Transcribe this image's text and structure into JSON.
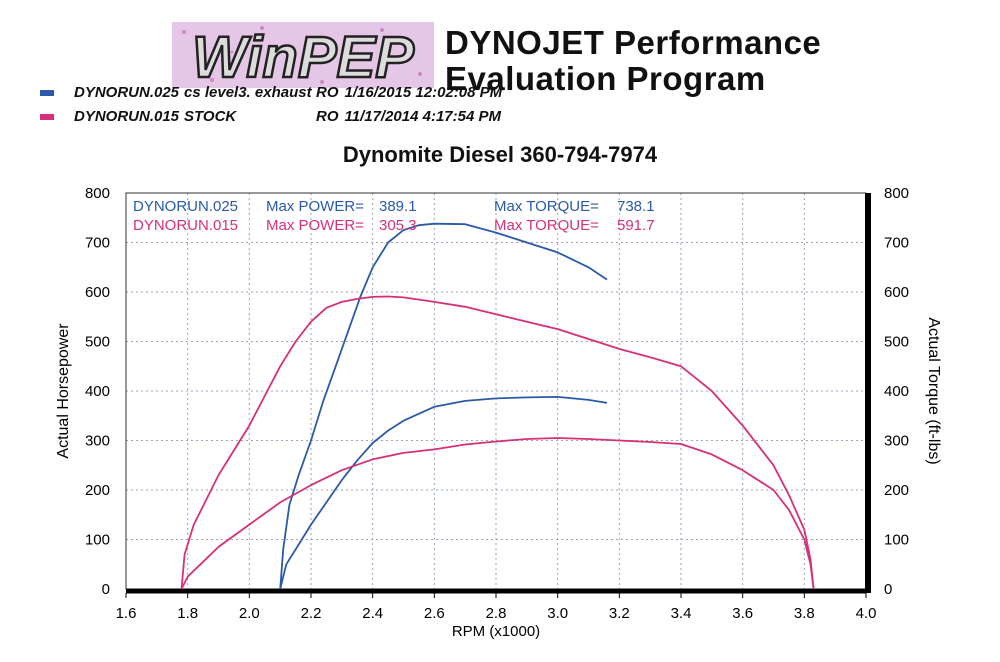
{
  "header": {
    "logo_text": "WinPEP",
    "program_line1": "DYNOJET Performance",
    "program_line2": "Evaluation Program",
    "shop_line": "Dynomite Diesel 360-794-7974"
  },
  "runs": [
    {
      "file": "DYNORUN.025",
      "desc": "cs level3. exhaust",
      "op": "RO",
      "date": "1/16/2015 12:02:08 PM",
      "color": "#2a5aa8"
    },
    {
      "file": "DYNORUN.015",
      "desc": "STOCK",
      "op": "RO",
      "date": "11/17/2014 4:17:54 PM",
      "color": "#d4317a"
    }
  ],
  "chart_data": {
    "type": "line",
    "xlabel": "RPM (x1000)",
    "ylabel": "Actual Horsepower",
    "y2label": "Actual Torque (ft-lbs)",
    "xlim": [
      1.6,
      4.0
    ],
    "ylim": [
      0,
      800
    ],
    "y2lim": [
      0,
      800
    ],
    "x_ticks": [
      "1.6",
      "1.8",
      "2.0",
      "2.2",
      "2.4",
      "2.6",
      "2.8",
      "3.0",
      "3.2",
      "3.4",
      "3.6",
      "3.8",
      "4.0"
    ],
    "y_ticks": [
      "0",
      "100",
      "200",
      "300",
      "400",
      "500",
      "600",
      "700",
      "800"
    ],
    "grid": true,
    "legend_lines": [
      {
        "run": "DYNORUN.025",
        "power_label": "Max POWER=",
        "power": "389.1",
        "torque_label": "Max TORQUE=",
        "torque": "738.1",
        "color": "#2a5aa8"
      },
      {
        "run": "DYNORUN.015",
        "power_label": "Max POWER=",
        "power": "305.3",
        "torque_label": "Max TORQUE=",
        "torque": "591.7",
        "color": "#d4317a"
      }
    ],
    "series": [
      {
        "run": "DYNORUN.025",
        "measure": "horsepower",
        "color": "#2a5aa8",
        "x": [
          2.1,
          2.12,
          2.16,
          2.2,
          2.25,
          2.3,
          2.35,
          2.4,
          2.45,
          2.5,
          2.6,
          2.7,
          2.8,
          2.9,
          3.0,
          3.1,
          3.16
        ],
        "y": [
          0,
          50,
          90,
          130,
          175,
          220,
          260,
          295,
          320,
          340,
          368,
          380,
          385,
          387,
          388,
          382,
          376
        ]
      },
      {
        "run": "DYNORUN.025",
        "measure": "torque",
        "color": "#2a5aa8",
        "x": [
          2.1,
          2.11,
          2.13,
          2.16,
          2.2,
          2.24,
          2.28,
          2.32,
          2.36,
          2.4,
          2.45,
          2.5,
          2.55,
          2.6,
          2.7,
          2.8,
          2.9,
          3.0,
          3.1,
          3.16
        ],
        "y": [
          0,
          80,
          170,
          230,
          300,
          380,
          450,
          520,
          590,
          650,
          700,
          725,
          735,
          738,
          737,
          720,
          700,
          680,
          650,
          625
        ]
      },
      {
        "run": "DYNORUN.015",
        "measure": "horsepower",
        "color": "#d4317a",
        "x": [
          1.78,
          1.8,
          1.85,
          1.9,
          2.0,
          2.1,
          2.2,
          2.3,
          2.4,
          2.5,
          2.6,
          2.7,
          2.8,
          2.9,
          3.0,
          3.1,
          3.2,
          3.3,
          3.4,
          3.5,
          3.6,
          3.7,
          3.75,
          3.8,
          3.82,
          3.83
        ],
        "y": [
          0,
          25,
          55,
          85,
          130,
          175,
          210,
          240,
          262,
          275,
          282,
          292,
          298,
          303,
          305,
          303,
          300,
          297,
          293,
          272,
          240,
          200,
          160,
          100,
          50,
          0
        ]
      },
      {
        "run": "DYNORUN.015",
        "measure": "torque",
        "color": "#d4317a",
        "x": [
          1.78,
          1.79,
          1.82,
          1.86,
          1.9,
          1.95,
          2.0,
          2.05,
          2.1,
          2.15,
          2.2,
          2.25,
          2.3,
          2.35,
          2.4,
          2.45,
          2.5,
          2.6,
          2.7,
          2.8,
          2.9,
          3.0,
          3.1,
          3.2,
          3.3,
          3.4,
          3.45,
          3.5,
          3.6,
          3.7,
          3.75,
          3.8,
          3.82,
          3.83
        ],
        "y": [
          0,
          70,
          130,
          180,
          230,
          280,
          330,
          390,
          450,
          500,
          540,
          568,
          580,
          586,
          590,
          591,
          589,
          580,
          570,
          555,
          540,
          525,
          505,
          485,
          468,
          450,
          425,
          400,
          330,
          250,
          190,
          120,
          60,
          0
        ]
      }
    ]
  }
}
